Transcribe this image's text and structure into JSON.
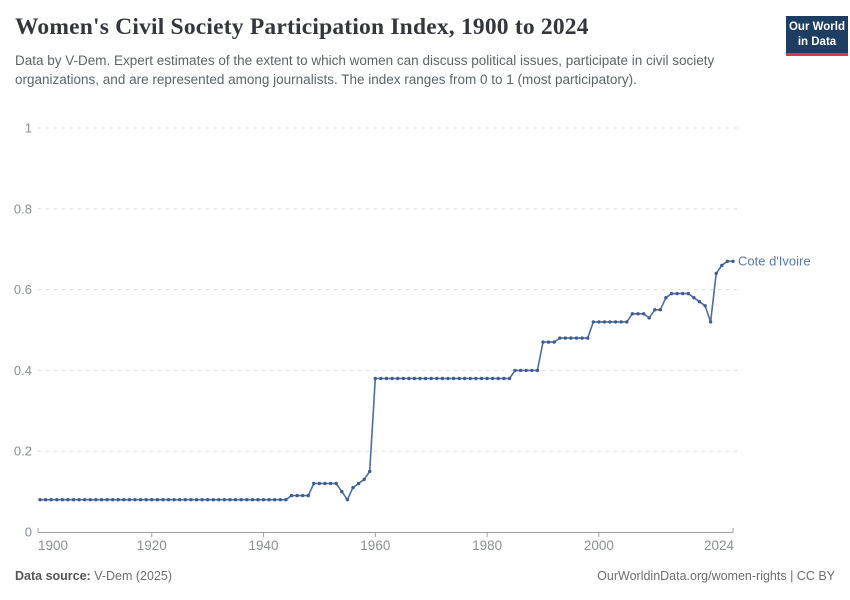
{
  "header": {
    "title": "Women's Civil Society Participation Index, 1900 to 2024",
    "subtitle": "Data by V-Dem. Expert estimates of the extent to which women can discuss political issues, participate in civil society organizations, and are represented among journalists. The index ranges from 0 to 1 (most participatory).",
    "logo": {
      "line1": "Our World",
      "line2": "in Data"
    }
  },
  "footer": {
    "source_label": "Data source:",
    "source_value": "V-Dem (2025)",
    "credit": "OurWorldinData.org/women-rights | CC BY"
  },
  "colors": {
    "line": "#4c6da3",
    "dot": "#3d5c94",
    "entity_label": "#5879ad",
    "logo_navy": "#1d3d63",
    "logo_red": "#dc3b35"
  },
  "chart_data": {
    "type": "line",
    "title": "Women's Civil Society Participation Index, 1900 to 2024",
    "xlabel": "",
    "ylabel": "",
    "xlim": [
      1900,
      2024
    ],
    "ylim": [
      0,
      1
    ],
    "x_ticks": [
      1900,
      1920,
      1940,
      1960,
      1980,
      2000,
      2024
    ],
    "y_ticks": [
      0,
      0.2,
      0.4,
      0.6,
      0.8,
      1
    ],
    "grid": "horizontal-dashed",
    "legend_position": "end-of-line-label",
    "series": [
      {
        "name": "Cote d'Ivoire",
        "x_start": 1900,
        "x_step": 1,
        "values": [
          0.08,
          0.08,
          0.08,
          0.08,
          0.08,
          0.08,
          0.08,
          0.08,
          0.08,
          0.08,
          0.08,
          0.08,
          0.08,
          0.08,
          0.08,
          0.08,
          0.08,
          0.08,
          0.08,
          0.08,
          0.08,
          0.08,
          0.08,
          0.08,
          0.08,
          0.08,
          0.08,
          0.08,
          0.08,
          0.08,
          0.08,
          0.08,
          0.08,
          0.08,
          0.08,
          0.08,
          0.08,
          0.08,
          0.08,
          0.08,
          0.08,
          0.08,
          0.08,
          0.08,
          0.08,
          0.09,
          0.09,
          0.09,
          0.09,
          0.12,
          0.12,
          0.12,
          0.12,
          0.12,
          0.1,
          0.08,
          0.11,
          0.12,
          0.13,
          0.15,
          0.38,
          0.38,
          0.38,
          0.38,
          0.38,
          0.38,
          0.38,
          0.38,
          0.38,
          0.38,
          0.38,
          0.38,
          0.38,
          0.38,
          0.38,
          0.38,
          0.38,
          0.38,
          0.38,
          0.38,
          0.38,
          0.38,
          0.38,
          0.38,
          0.38,
          0.4,
          0.4,
          0.4,
          0.4,
          0.4,
          0.47,
          0.47,
          0.47,
          0.48,
          0.48,
          0.48,
          0.48,
          0.48,
          0.48,
          0.52,
          0.52,
          0.52,
          0.52,
          0.52,
          0.52,
          0.52,
          0.54,
          0.54,
          0.54,
          0.53,
          0.55,
          0.55,
          0.58,
          0.59,
          0.59,
          0.59,
          0.59,
          0.58,
          0.57,
          0.56,
          0.52,
          0.64,
          0.66,
          0.67,
          0.67
        ]
      }
    ]
  }
}
